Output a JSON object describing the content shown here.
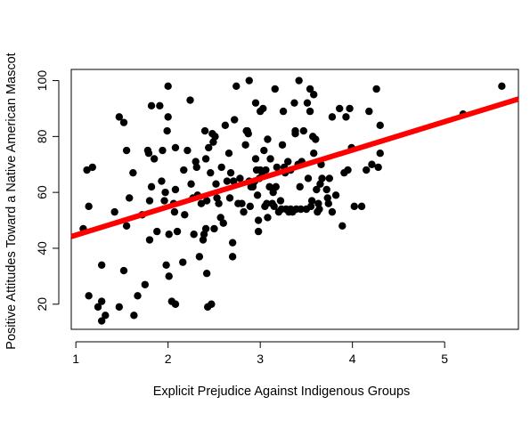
{
  "chart_data": {
    "type": "scatter",
    "title": "",
    "xlabel": "Explicit Prejudice Against Indigenous Groups",
    "ylabel": "Positive Attitudes Toward a Native American Mascot",
    "xlim": [
      0.95,
      5.8
    ],
    "ylim": [
      11,
      104
    ],
    "x_ticks": [
      1,
      2,
      3,
      4,
      5
    ],
    "y_ticks": [
      20,
      40,
      60,
      80,
      100
    ],
    "grid": false,
    "legend": "none",
    "colors": {
      "points": "#000000",
      "regression_line": "#ff0000"
    },
    "regression_line": {
      "slope": 10.15,
      "intercept": 34.55
    },
    "points": [
      [
        1.08,
        47
      ],
      [
        1.12,
        68
      ],
      [
        1.14,
        55
      ],
      [
        1.14,
        23
      ],
      [
        1.18,
        69
      ],
      [
        1.24,
        19
      ],
      [
        1.28,
        34
      ],
      [
        1.28,
        21
      ],
      [
        1.28,
        14
      ],
      [
        1.32,
        16
      ],
      [
        1.42,
        53
      ],
      [
        1.47,
        19
      ],
      [
        1.47,
        87
      ],
      [
        1.52,
        85
      ],
      [
        1.52,
        32
      ],
      [
        1.55,
        48
      ],
      [
        1.55,
        75
      ],
      [
        1.58,
        58
      ],
      [
        1.62,
        67
      ],
      [
        1.63,
        16
      ],
      [
        1.67,
        23
      ],
      [
        1.72,
        52
      ],
      [
        1.75,
        27
      ],
      [
        1.78,
        75
      ],
      [
        1.79,
        74
      ],
      [
        1.8,
        43
      ],
      [
        1.8,
        57
      ],
      [
        1.82,
        91
      ],
      [
        1.82,
        62
      ],
      [
        1.85,
        72
      ],
      [
        1.88,
        46
      ],
      [
        1.91,
        91
      ],
      [
        1.93,
        64
      ],
      [
        1.94,
        75
      ],
      [
        1.96,
        57
      ],
      [
        1.97,
        60
      ],
      [
        1.98,
        34
      ],
      [
        1.99,
        82
      ],
      [
        2.0,
        87
      ],
      [
        2.0,
        98
      ],
      [
        2.01,
        45
      ],
      [
        2.01,
        30
      ],
      [
        2.04,
        21
      ],
      [
        2.06,
        56
      ],
      [
        2.07,
        53
      ],
      [
        2.08,
        61
      ],
      [
        2.08,
        76
      ],
      [
        2.08,
        20
      ],
      [
        2.1,
        46
      ],
      [
        2.16,
        35
      ],
      [
        2.17,
        68
      ],
      [
        2.18,
        52
      ],
      [
        2.21,
        75
      ],
      [
        2.24,
        93
      ],
      [
        2.25,
        63
      ],
      [
        2.27,
        58
      ],
      [
        2.28,
        45
      ],
      [
        2.3,
        71
      ],
      [
        2.31,
        69
      ],
      [
        2.32,
        59
      ],
      [
        2.34,
        37
      ],
      [
        2.36,
        56
      ],
      [
        2.38,
        43
      ],
      [
        2.39,
        45
      ],
      [
        2.4,
        82
      ],
      [
        2.41,
        72
      ],
      [
        2.41,
        47
      ],
      [
        2.42,
        57
      ],
      [
        2.42,
        31
      ],
      [
        2.43,
        19
      ],
      [
        2.44,
        76
      ],
      [
        2.46,
        67
      ],
      [
        2.47,
        20
      ],
      [
        2.48,
        81
      ],
      [
        2.49,
        78
      ],
      [
        2.5,
        47
      ],
      [
        2.51,
        80
      ],
      [
        2.52,
        63
      ],
      [
        2.53,
        58
      ],
      [
        2.55,
        56
      ],
      [
        2.57,
        51
      ],
      [
        2.58,
        69
      ],
      [
        2.6,
        49
      ],
      [
        2.62,
        84
      ],
      [
        2.64,
        64
      ],
      [
        2.66,
        74
      ],
      [
        2.67,
        58
      ],
      [
        2.68,
        67
      ],
      [
        2.7,
        42
      ],
      [
        2.7,
        37
      ],
      [
        2.71,
        64
      ],
      [
        2.72,
        86
      ],
      [
        2.74,
        98
      ],
      [
        2.76,
        56
      ],
      [
        2.78,
        65
      ],
      [
        2.8,
        56
      ],
      [
        2.82,
        53
      ],
      [
        2.84,
        77
      ],
      [
        2.85,
        82
      ],
      [
        2.86,
        82
      ],
      [
        2.87,
        81
      ],
      [
        2.88,
        64
      ],
      [
        2.88,
        100
      ],
      [
        2.89,
        55
      ],
      [
        2.9,
        62
      ],
      [
        2.92,
        63
      ],
      [
        2.92,
        62
      ],
      [
        2.94,
        64
      ],
      [
        2.95,
        72
      ],
      [
        2.95,
        92
      ],
      [
        2.96,
        68
      ],
      [
        2.97,
        59
      ],
      [
        2.98,
        50
      ],
      [
        2.98,
        46
      ],
      [
        2.99,
        65
      ],
      [
        3.0,
        89
      ],
      [
        3.0,
        68
      ],
      [
        3.02,
        66
      ],
      [
        3.03,
        90
      ],
      [
        3.04,
        75
      ],
      [
        3.05,
        55
      ],
      [
        3.06,
        68
      ],
      [
        3.07,
        56
      ],
      [
        3.08,
        51
      ],
      [
        3.08,
        79
      ],
      [
        3.1,
        62
      ],
      [
        3.11,
        72
      ],
      [
        3.13,
        56
      ],
      [
        3.14,
        60
      ],
      [
        3.15,
        55
      ],
      [
        3.16,
        97
      ],
      [
        3.17,
        62
      ],
      [
        3.18,
        69
      ],
      [
        3.2,
        53
      ],
      [
        3.22,
        57
      ],
      [
        3.23,
        54
      ],
      [
        3.24,
        77
      ],
      [
        3.25,
        89
      ],
      [
        3.26,
        69
      ],
      [
        3.27,
        67
      ],
      [
        3.28,
        54
      ],
      [
        3.3,
        71
      ],
      [
        3.31,
        53
      ],
      [
        3.33,
        54
      ],
      [
        3.33,
        68
      ],
      [
        3.35,
        53
      ],
      [
        3.37,
        92
      ],
      [
        3.38,
        82
      ],
      [
        3.38,
        81
      ],
      [
        3.39,
        54
      ],
      [
        3.41,
        70
      ],
      [
        3.42,
        100
      ],
      [
        3.43,
        62
      ],
      [
        3.44,
        54
      ],
      [
        3.45,
        71
      ],
      [
        3.47,
        82
      ],
      [
        3.5,
        54
      ],
      [
        3.51,
        92
      ],
      [
        3.52,
        65
      ],
      [
        3.54,
        97
      ],
      [
        3.54,
        89
      ],
      [
        3.55,
        55
      ],
      [
        3.56,
        57
      ],
      [
        3.57,
        80
      ],
      [
        3.58,
        95
      ],
      [
        3.58,
        74
      ],
      [
        3.6,
        79
      ],
      [
        3.61,
        61
      ],
      [
        3.62,
        53
      ],
      [
        3.63,
        56
      ],
      [
        3.64,
        54
      ],
      [
        3.65,
        63
      ],
      [
        3.66,
        70
      ],
      [
        3.67,
        65
      ],
      [
        3.72,
        61
      ],
      [
        3.73,
        58
      ],
      [
        3.74,
        56
      ],
      [
        3.75,
        65
      ],
      [
        3.78,
        53
      ],
      [
        3.78,
        87
      ],
      [
        3.82,
        59
      ],
      [
        3.86,
        90
      ],
      [
        3.89,
        48
      ],
      [
        3.91,
        67
      ],
      [
        3.93,
        87
      ],
      [
        3.95,
        68
      ],
      [
        3.97,
        90
      ],
      [
        3.99,
        76
      ],
      [
        4.02,
        55
      ],
      [
        4.1,
        55
      ],
      [
        4.15,
        68
      ],
      [
        4.18,
        89
      ],
      [
        4.21,
        70
      ],
      [
        4.26,
        97
      ],
      [
        4.28,
        69
      ],
      [
        4.3,
        74
      ],
      [
        4.3,
        84
      ],
      [
        5.2,
        88
      ],
      [
        5.62,
        98
      ]
    ]
  }
}
